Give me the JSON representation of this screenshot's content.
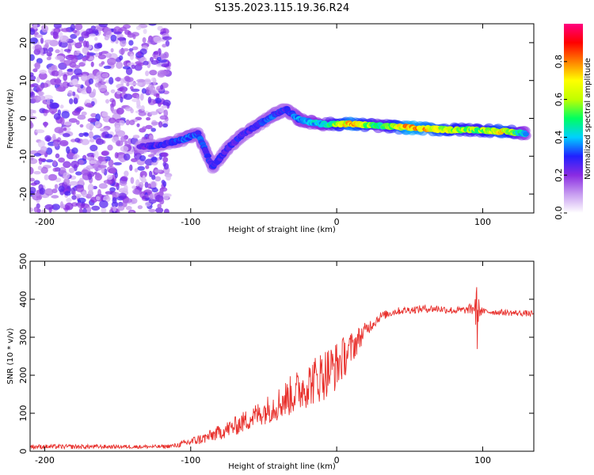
{
  "title": "S135.2023.115.19.36.R24",
  "colors": {
    "snr_line": "#e8302c",
    "axis": "#000000",
    "background": "#ffffff"
  },
  "chart_data": [
    {
      "type": "heatmap",
      "title": "S135.2023.115.19.36.R24",
      "xlabel": "Height of straight line (km)",
      "ylabel": "Frequency (Hz)",
      "xlim": [
        -210,
        135
      ],
      "ylim": [
        -25,
        25
      ],
      "x_ticks": [
        -200,
        -100,
        0,
        100
      ],
      "x_tick_labels": [
        "-200",
        "-100",
        "0",
        "100"
      ],
      "y_ticks": [
        -20,
        -10,
        0,
        10,
        20
      ],
      "y_tick_labels": [
        "-20",
        "-10",
        "0",
        "10",
        "20"
      ],
      "colorbar": {
        "label": "Normalized spectral amplitude",
        "range": [
          0,
          1
        ],
        "ticks": [
          0.0,
          0.2,
          0.4,
          0.6,
          0.8
        ],
        "tick_labels": [
          "0.0",
          "0.2",
          "0.4",
          "0.6",
          "0.8"
        ],
        "stops": [
          "#ffffff",
          "#c79cf0",
          "#8a2be2",
          "#2020ff",
          "#00d0ff",
          "#00ff60",
          "#c0ff00",
          "#ffff00",
          "#ff8000",
          "#ff0000",
          "#ff0080"
        ]
      },
      "ridge": [
        {
          "x": -135,
          "y": -7.5,
          "a": 0.25
        },
        {
          "x": -120,
          "y": -7.0,
          "a": 0.3
        },
        {
          "x": -105,
          "y": -5.5,
          "a": 0.35
        },
        {
          "x": -95,
          "y": -4.0,
          "a": 0.35
        },
        {
          "x": -85,
          "y": -13.0,
          "a": 0.3
        },
        {
          "x": -75,
          "y": -8.0,
          "a": 0.3
        },
        {
          "x": -65,
          "y": -4.5,
          "a": 0.3
        },
        {
          "x": -55,
          "y": -2.0,
          "a": 0.3
        },
        {
          "x": -45,
          "y": 0.5,
          "a": 0.35
        },
        {
          "x": -35,
          "y": 2.5,
          "a": 0.3
        },
        {
          "x": -25,
          "y": -0.5,
          "a": 0.4
        },
        {
          "x": -10,
          "y": -1.5,
          "a": 0.45
        },
        {
          "x": 10,
          "y": -1.5,
          "a": 0.8
        },
        {
          "x": 30,
          "y": -2.0,
          "a": 0.5
        },
        {
          "x": 50,
          "y": -2.5,
          "a": 0.85
        },
        {
          "x": 75,
          "y": -3.0,
          "a": 0.7
        },
        {
          "x": 95,
          "y": -3.0,
          "a": 0.6
        },
        {
          "x": 115,
          "y": -3.5,
          "a": 0.75
        },
        {
          "x": 130,
          "y": -4.0,
          "a": 0.4
        }
      ]
    },
    {
      "type": "line",
      "xlabel": "Height of straight line (km)",
      "ylabel": "SNR (10 * v/v)",
      "xlim": [
        -210,
        135
      ],
      "ylim": [
        0,
        500
      ],
      "x_ticks": [
        -200,
        -100,
        0,
        100
      ],
      "x_tick_labels": [
        "-200",
        "-100",
        "0",
        "100"
      ],
      "y_ticks": [
        0,
        100,
        200,
        300,
        400,
        500
      ],
      "y_tick_labels": [
        "0",
        "100",
        "200",
        "300",
        "400",
        "500"
      ],
      "series": [
        {
          "name": "SNR",
          "x": [
            -210,
            -180,
            -150,
            -120,
            -110,
            -100,
            -90,
            -80,
            -70,
            -60,
            -50,
            -40,
            -30,
            -20,
            -10,
            0,
            10,
            20,
            30,
            40,
            50,
            60,
            70,
            80,
            90,
            95,
            96,
            97,
            100,
            110,
            120,
            135
          ],
          "y": [
            12,
            12,
            12,
            12,
            15,
            25,
            35,
            50,
            65,
            85,
            105,
            125,
            150,
            175,
            200,
            225,
            270,
            320,
            355,
            368,
            372,
            375,
            375,
            370,
            372,
            380,
            330,
            375,
            368,
            366,
            364,
            362
          ],
          "noise": [
            6,
            6,
            5,
            5,
            6,
            12,
            15,
            20,
            25,
            30,
            35,
            45,
            55,
            60,
            70,
            65,
            45,
            20,
            12,
            10,
            10,
            10,
            10,
            10,
            10,
            30,
            120,
            30,
            8,
            8,
            8,
            8
          ]
        }
      ]
    }
  ]
}
